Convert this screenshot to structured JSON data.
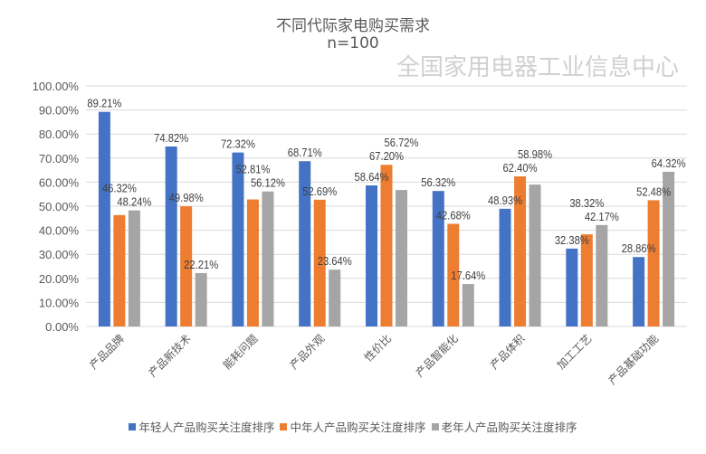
{
  "chart_data": {
    "type": "bar",
    "title": "不同代际家电购买需求",
    "subtitle": "n=100",
    "categories": [
      "产品品牌",
      "产品新技术",
      "能耗问题",
      "产品外观",
      "性价比",
      "产品智能化",
      "产品体积",
      "加工工艺",
      "产品基础功能"
    ],
    "series": [
      {
        "name": "年轻人产品购买关注度排序",
        "color": "#4472C4",
        "values": [
          89.21,
          74.82,
          72.32,
          68.71,
          58.64,
          56.32,
          48.93,
          32.38,
          28.86
        ]
      },
      {
        "name": "中年人产品购买关注度排序",
        "color": "#ED7D31",
        "values": [
          46.32,
          49.98,
          52.81,
          52.69,
          67.2,
          42.68,
          62.4,
          38.32,
          52.48
        ]
      },
      {
        "name": "老年人产品购买关注度排序",
        "color": "#A5A5A5",
        "values": [
          48.24,
          22.21,
          56.12,
          23.64,
          56.72,
          17.64,
          58.98,
          42.17,
          64.32
        ]
      }
    ],
    "ylim": [
      0,
      100
    ],
    "yticks": [
      "0.00%",
      "10.00%",
      "20.00%",
      "30.00%",
      "40.00%",
      "50.00%",
      "60.00%",
      "70.00%",
      "80.00%",
      "90.00%",
      "100.00%"
    ],
    "grid": true,
    "legend_position": "bottom",
    "data_label_suffix": "%"
  },
  "watermark": "全国家用电器工业信息中心"
}
